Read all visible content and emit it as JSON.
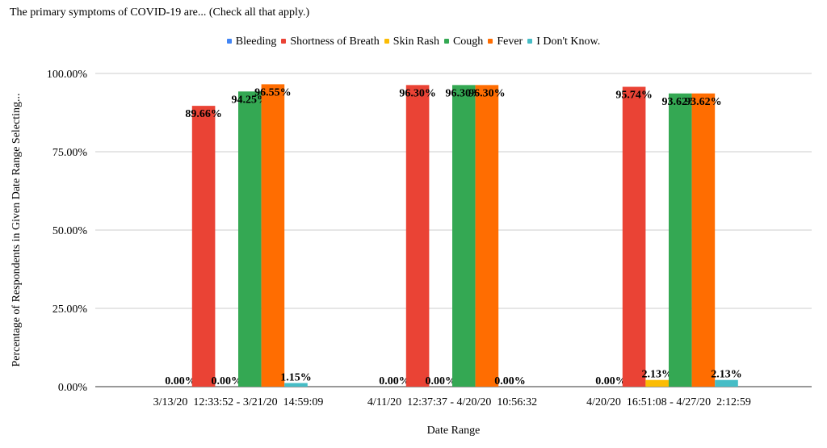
{
  "chart_data": {
    "type": "bar",
    "title": "The primary symptoms of COVID-19 are... (Check all that apply.)",
    "xlabel": "Date Range",
    "ylabel": "Percentage of Respondents in Given Date Range Selecting...",
    "ylim": [
      0,
      100
    ],
    "yticks": [
      "0.00%",
      "25.00%",
      "50.00%",
      "75.00%",
      "100.00%"
    ],
    "grid": true,
    "legend_position": "top",
    "categories": [
      "3/13/20  12:33:52 - 3/21/20  14:59:09",
      "4/11/20  12:37:37 - 4/20/20  10:56:32",
      "4/20/20  16:51:08 - 4/27/20  2:12:59"
    ],
    "series": [
      {
        "name": "Bleeding",
        "color": "#4285f4",
        "values": [
          0,
          0,
          0
        ],
        "labels": [
          "0.00%",
          "0.00%",
          "0.00%"
        ]
      },
      {
        "name": "Shortness of Breath",
        "color": "#ea4335",
        "values": [
          89.66,
          96.3,
          95.74
        ],
        "labels": [
          "89.66%",
          "96.30%",
          "95.74%"
        ]
      },
      {
        "name": "Skin Rash",
        "color": "#fbbc04",
        "values": [
          0,
          0,
          2.13
        ],
        "labels": [
          "0.00%",
          "0.00%",
          "2.13%"
        ]
      },
      {
        "name": "Cough",
        "color": "#34a853",
        "values": [
          94.25,
          96.3,
          93.62
        ],
        "labels": [
          "94.25%",
          "96.30%",
          "93.62%"
        ]
      },
      {
        "name": "Fever",
        "color": "#ff6d01",
        "values": [
          96.55,
          96.3,
          93.62
        ],
        "labels": [
          "96.55%",
          "96.30%",
          "93.62%"
        ]
      },
      {
        "name": "I Don't Know.",
        "color": "#46bdc6",
        "values": [
          1.15,
          0,
          2.13
        ],
        "labels": [
          "1.15%",
          "0.00%",
          "2.13%"
        ]
      }
    ]
  }
}
